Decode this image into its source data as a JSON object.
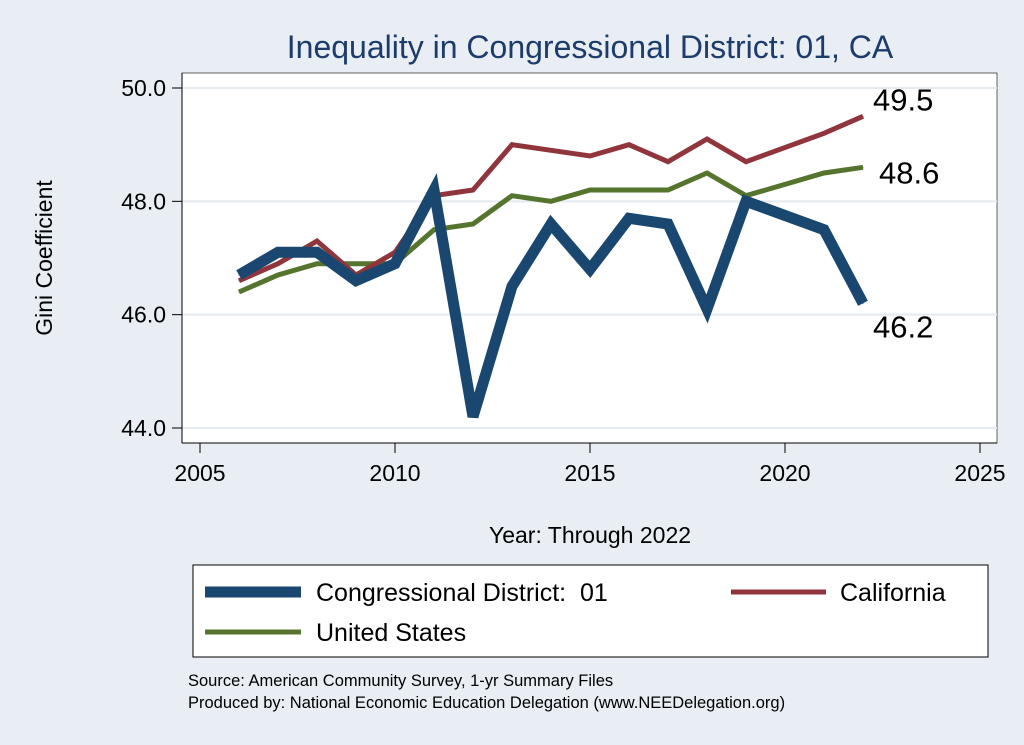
{
  "chart_data": {
    "type": "line",
    "title": "Inequality in Congressional District:  01, CA",
    "xlabel": "Year: Through 2022",
    "ylabel": "Gini Coefficient",
    "xlim": [
      2005,
      2025
    ],
    "ylim": [
      44.0,
      50.0
    ],
    "xticks": [
      "2005",
      "2010",
      "2015",
      "2020",
      "2025"
    ],
    "yticks": [
      "44.0",
      "46.0",
      "48.0",
      "50.0"
    ],
    "grid": true,
    "legend_position": "bottom",
    "series": [
      {
        "name": "Congressional District:  01",
        "color": "#1a476f",
        "end_label": "46.2",
        "x": [
          2006,
          2007,
          2008,
          2009,
          2010,
          2011,
          2012,
          2013,
          2014,
          2015,
          2016,
          2017,
          2018,
          2019,
          2021,
          2022
        ],
        "values": [
          46.7,
          47.1,
          47.1,
          46.6,
          46.9,
          48.2,
          44.2,
          46.5,
          47.6,
          46.8,
          47.7,
          47.6,
          46.1,
          48.0,
          47.5,
          46.2
        ]
      },
      {
        "name": "California",
        "color": "#90353b",
        "end_label": "49.5",
        "x": [
          2006,
          2007,
          2008,
          2009,
          2010,
          2011,
          2012,
          2013,
          2014,
          2015,
          2016,
          2017,
          2018,
          2019,
          2021,
          2022
        ],
        "values": [
          46.6,
          46.9,
          47.3,
          46.7,
          47.1,
          48.1,
          48.2,
          49.0,
          48.9,
          48.8,
          49.0,
          48.7,
          49.1,
          48.7,
          49.2,
          49.5
        ]
      },
      {
        "name": "United States",
        "color": "#55752f",
        "end_label": "48.6",
        "x": [
          2006,
          2007,
          2008,
          2009,
          2010,
          2011,
          2012,
          2013,
          2014,
          2015,
          2016,
          2017,
          2018,
          2019,
          2021,
          2022
        ],
        "values": [
          46.4,
          46.7,
          46.9,
          46.9,
          46.9,
          47.5,
          47.6,
          48.1,
          48.0,
          48.2,
          48.2,
          48.2,
          48.5,
          48.1,
          48.5,
          48.6
        ]
      }
    ],
    "notes": [
      "Source: American Community Survey, 1-yr Summary Files",
      "Produced by: National Economic Education Delegation (www.NEEDelegation.org)"
    ]
  }
}
